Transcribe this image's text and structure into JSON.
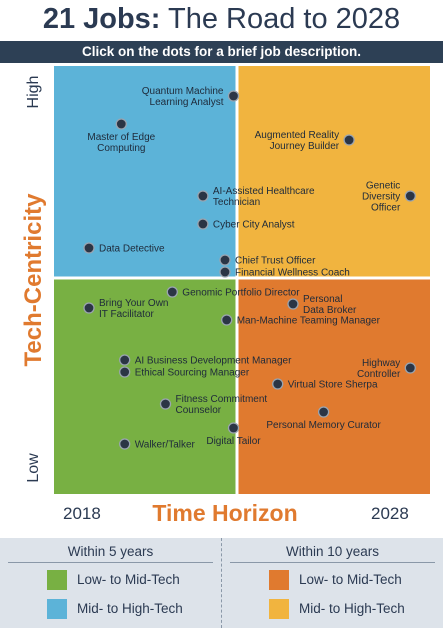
{
  "header": {
    "title_bold": "21 Jobs:",
    "title_rest": " The Road to 2028",
    "instruction": "Click on the dots for a brief job description."
  },
  "colors": {
    "blue": "#5cb3d8",
    "orange": "#f1b43f",
    "green": "#78b043",
    "dark_orange": "#e07a2f",
    "navy": "#2d4055",
    "legend_bg": "#dde3ea"
  },
  "chart_data": {
    "type": "scatter",
    "x_axis": {
      "label": "Time Horizon",
      "start_label": "2018",
      "end_label": "2028"
    },
    "y_axis": {
      "label": "Tech-Centricity",
      "low_label": "Low",
      "high_label": "High"
    },
    "quadrants": [
      {
        "name": "top-left",
        "color": "#5cb3d8"
      },
      {
        "name": "top-right",
        "color": "#f1b43f"
      },
      {
        "name": "bottom-left",
        "color": "#78b043"
      },
      {
        "name": "bottom-right",
        "color": "#e07a2f"
      }
    ],
    "points": [
      {
        "label": "Quantum Machine\nLearning Analyst",
        "x": 0.95,
        "y": 0.96,
        "label_side": "left"
      },
      {
        "label": "Master of Edge\nComputing",
        "x": 0.29,
        "y": 0.89,
        "label_side": "below"
      },
      {
        "label": "Augmented Reality\nJourney Builder",
        "x": 1.63,
        "y": 0.85,
        "label_side": "left"
      },
      {
        "label": "AI-Assisted Healthcare\nTechnician",
        "x": 0.77,
        "y": 0.71,
        "label_side": "right"
      },
      {
        "label": "Genetic\nDiversity\nOfficer",
        "x": 1.99,
        "y": 0.71,
        "label_side": "left"
      },
      {
        "label": "Cyber City Analyst",
        "x": 0.77,
        "y": 0.64,
        "label_side": "right"
      },
      {
        "label": "Data Detective",
        "x": 0.1,
        "y": 0.58,
        "label_side": "right"
      },
      {
        "label": "Chief Trust Officer",
        "x": 0.9,
        "y": 0.55,
        "label_side": "right"
      },
      {
        "label": "Financial Wellness Coach",
        "x": 0.9,
        "y": 0.52,
        "label_side": "right"
      },
      {
        "label": "Genomic Portfolio Director",
        "x": 0.59,
        "y": 0.47,
        "label_side": "right"
      },
      {
        "label": "Personal\nData Broker",
        "x": 1.3,
        "y": 0.44,
        "label_side": "right"
      },
      {
        "label": "Bring Your Own\nIT Facilitator",
        "x": 0.1,
        "y": 0.43,
        "label_side": "right"
      },
      {
        "label": "Man-Machine Teaming Manager",
        "x": 0.91,
        "y": 0.4,
        "label_side": "right"
      },
      {
        "label": "AI Business Development Manager",
        "x": 0.31,
        "y": 0.3,
        "label_side": "right"
      },
      {
        "label": "Highway\nController",
        "x": 1.99,
        "y": 0.28,
        "label_side": "left"
      },
      {
        "label": "Ethical Sourcing Manager",
        "x": 0.31,
        "y": 0.27,
        "label_side": "right"
      },
      {
        "label": "Virtual Store Sherpa",
        "x": 1.21,
        "y": 0.24,
        "label_side": "right"
      },
      {
        "label": "Fitness Commitment\nCounselor",
        "x": 0.55,
        "y": 0.19,
        "label_side": "right"
      },
      {
        "label": "Personal Memory Curator",
        "x": 1.48,
        "y": 0.17,
        "label_side": "below"
      },
      {
        "label": "Digital Tailor",
        "x": 0.95,
        "y": 0.13,
        "label_side": "below"
      },
      {
        "label": "Walker/Talker",
        "x": 0.31,
        "y": 0.09,
        "label_side": "right"
      }
    ]
  },
  "legend": {
    "left_header": "Within 5 years",
    "right_header": "Within 10 years",
    "items": [
      {
        "label": "Low- to Mid-Tech",
        "color": "#78b043"
      },
      {
        "label": "Mid- to High-Tech",
        "color": "#5cb3d8"
      },
      {
        "label": "Low- to Mid-Tech",
        "color": "#e07a2f"
      },
      {
        "label": "Mid- to High-Tech",
        "color": "#f1b43f"
      }
    ]
  }
}
